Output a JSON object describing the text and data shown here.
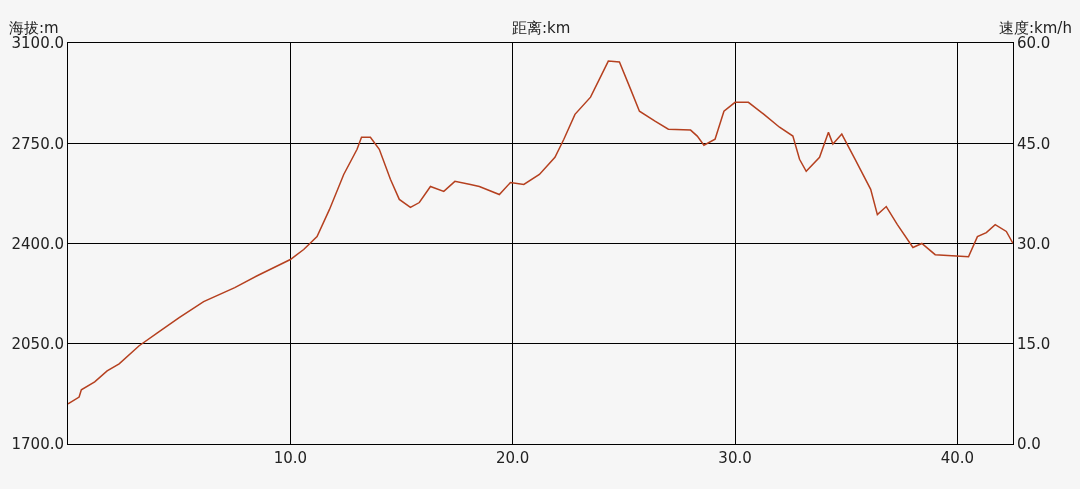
{
  "chart_data": {
    "type": "line",
    "xlabel": "距离:km",
    "ylabel": "海拔:m",
    "y2label": "速度:km/h",
    "x": [
      0,
      0.5,
      0.6,
      1.2,
      1.76,
      2.3,
      3.2,
      4.1,
      5.0,
      6.1,
      7.5,
      8.6,
      10.0,
      10.6,
      11.2,
      11.76,
      12.4,
      13.0,
      13.2,
      13.6,
      14.0,
      14.5,
      14.9,
      15.4,
      15.8,
      16.3,
      16.9,
      17.4,
      18.1,
      18.5,
      19.4,
      19.9,
      20.5,
      21.2,
      21.9,
      22.3,
      22.8,
      23.5,
      23.9,
      24.3,
      24.8,
      25.3,
      25.7,
      26.4,
      27.0,
      28.0,
      28.3,
      28.6,
      29.1,
      29.5,
      30.0,
      30.6,
      31.3,
      32.0,
      32.6,
      32.9,
      33.2,
      33.8,
      34.2,
      34.4,
      34.8,
      35.4,
      36.1,
      36.4,
      36.8,
      37.3,
      38.0,
      38.4,
      39.0,
      40.5,
      40.9,
      41.3,
      41.7,
      42.2,
      42.5
    ],
    "series": [
      {
        "color": "#b5401f",
        "values": [
          1840,
          1864,
          1889,
          1917,
          1955,
          1980,
          2043,
          2092,
          2141,
          2197,
          2246,
          2291,
          2344,
          2379,
          2424,
          2519,
          2641,
          2729,
          2771,
          2771,
          2729,
          2624,
          2554,
          2526,
          2543,
          2599,
          2582,
          2617,
          2606,
          2599,
          2571,
          2613,
          2606,
          2641,
          2701,
          2764,
          2851,
          2911,
          2974,
          3037,
          3034,
          2939,
          2862,
          2827,
          2799,
          2796,
          2775,
          2743,
          2764,
          2862,
          2893,
          2893,
          2851,
          2806,
          2775,
          2694,
          2652,
          2701,
          2788,
          2747,
          2782,
          2694,
          2589,
          2501,
          2529,
          2466,
          2386,
          2400,
          2361,
          2354,
          2424,
          2438,
          2466,
          2442,
          2400
        ]
      }
    ],
    "xlim": [
      0,
      42.5
    ],
    "xticks": [
      {
        "value": 10,
        "label": "10.0"
      },
      {
        "value": 20,
        "label": "20.0"
      },
      {
        "value": 30,
        "label": "30.0"
      },
      {
        "value": 40,
        "label": "40.0"
      }
    ],
    "ylim": [
      1700,
      3100
    ],
    "yticks": [
      {
        "value": 1700,
        "label": "1700.0"
      },
      {
        "value": 2050,
        "label": "2050.0"
      },
      {
        "value": 2400,
        "label": "2400.0"
      },
      {
        "value": 2750,
        "label": "2750.0"
      },
      {
        "value": 3100,
        "label": "3100.0"
      }
    ],
    "y2lim": [
      0,
      60
    ],
    "y2ticks": [
      {
        "value": 0,
        "label": "0.0"
      },
      {
        "value": 15,
        "label": "15.0"
      },
      {
        "value": 30,
        "label": "30.0"
      },
      {
        "value": 45,
        "label": "45.0"
      },
      {
        "value": 60,
        "label": "60.0"
      }
    ],
    "grid": true,
    "marker": "none",
    "line_style": "solid"
  }
}
